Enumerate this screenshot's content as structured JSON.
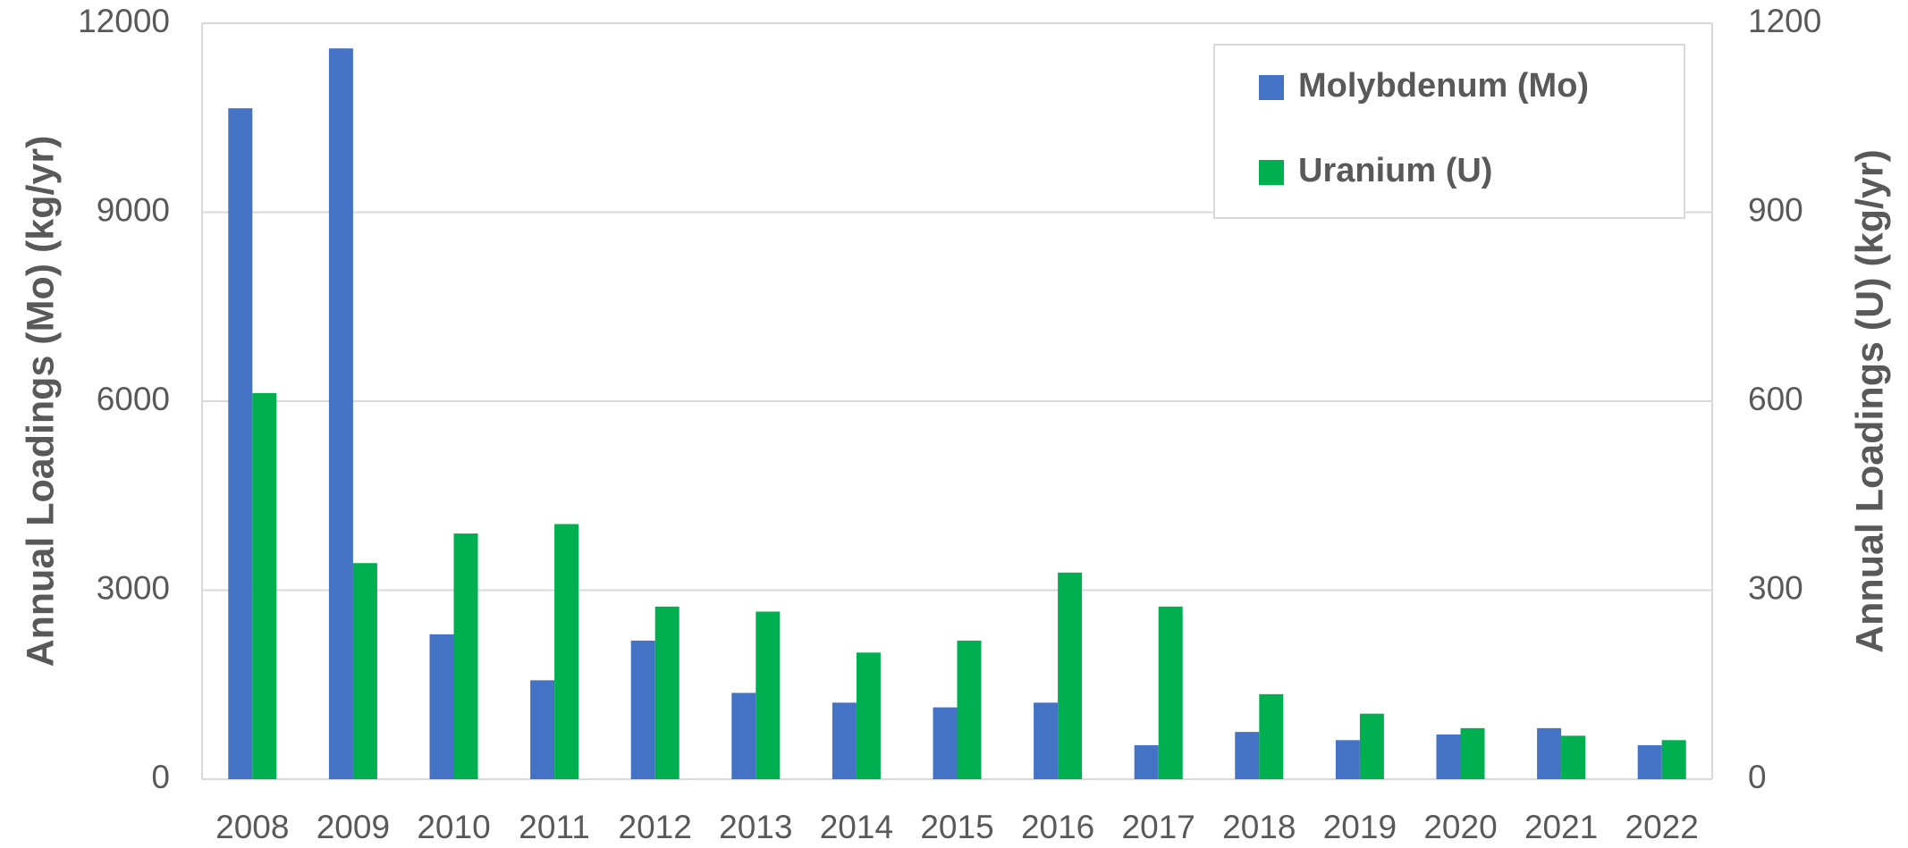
{
  "chart_data": {
    "type": "bar",
    "categories": [
      "2008",
      "2009",
      "2010",
      "2011",
      "2012",
      "2013",
      "2014",
      "2015",
      "2016",
      "2017",
      "2018",
      "2019",
      "2020",
      "2021",
      "2022"
    ],
    "series": [
      {
        "name": "Molybdenum (Mo)",
        "color": "#4472c4",
        "values": [
          10650,
          11600,
          2300,
          1570,
          2200,
          1370,
          1215,
          1140,
          1215,
          540,
          750,
          620,
          710,
          810,
          540
        ]
      },
      {
        "name": "Uranium (U)",
        "color": "#00b050",
        "axis": "y2",
        "values": [
          613,
          343,
          390,
          405,
          274,
          266,
          201,
          220,
          328,
          274,
          135,
          104,
          81,
          69,
          62
        ]
      }
    ],
    "ylabel": "Annual Loadings (Mo) (kg/yr)",
    "y2label": "Annual Loadings (U) (kg/yr)",
    "ylim": [
      0,
      12000
    ],
    "yticks": [
      0,
      3000,
      6000,
      9000,
      12000
    ],
    "y2lim": [
      0,
      1200
    ],
    "y2ticks": [
      0,
      300,
      600,
      900,
      1200
    ],
    "grid": true,
    "legend": "upper right"
  }
}
